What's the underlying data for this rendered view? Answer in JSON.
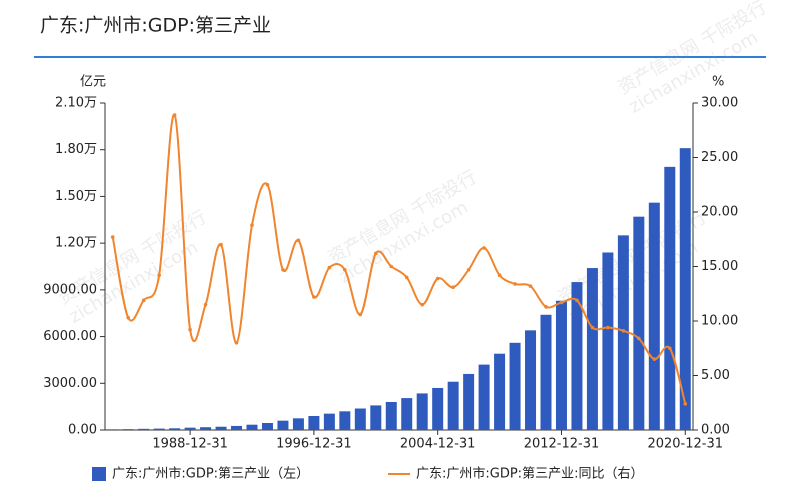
{
  "chart_data": {
    "type": "bar-line",
    "title": "广东:广州市:GDP:第三产业",
    "y_unit": "亿元",
    "y2_unit": "%",
    "watermark": [
      "资产信息网 千际投行",
      "zichanxinxi.com"
    ],
    "categories": [
      null,
      null,
      null,
      null,
      null,
      "1988-12-31",
      null,
      null,
      null,
      null,
      null,
      null,
      null,
      "1996-12-31",
      null,
      null,
      null,
      null,
      null,
      null,
      null,
      "2004-12-31",
      null,
      null,
      null,
      null,
      null,
      null,
      null,
      "2012-12-31",
      null,
      null,
      null,
      null,
      null,
      null,
      null,
      "2020-12-31"
    ],
    "series": [
      {
        "name": "广东:广州市:GDP:第三产业（左）",
        "type": "bar",
        "color": "#2f5bbf",
        "values": [
          45,
          55,
          75,
          90,
          110,
          150,
          180,
          210,
          260,
          340,
          450,
          600,
          750,
          900,
          1050,
          1200,
          1380,
          1580,
          1800,
          2050,
          2350,
          2700,
          3100,
          3600,
          4200,
          4900,
          5600,
          6400,
          7400,
          8300,
          9500,
          10400,
          11400,
          12500,
          13700,
          14600,
          16900,
          18100
        ]
      },
      {
        "name": "广东:广州市:GDP:第三产业:同比（右）",
        "type": "line",
        "axis": "y2",
        "color": "#f0852d",
        "values": [
          17.7,
          10.3,
          11.9,
          14.2,
          28.9,
          9.2,
          11.5,
          17.0,
          8.0,
          18.8,
          22.5,
          14.7,
          17.4,
          12.2,
          14.9,
          14.7,
          10.6,
          16.2,
          15.0,
          14.0,
          11.5,
          13.9,
          13.1,
          14.7,
          16.7,
          14.2,
          13.4,
          13.2,
          11.3,
          11.7,
          11.9,
          9.4,
          9.4,
          9.1,
          8.4,
          6.5,
          7.5,
          2.4
        ]
      }
    ],
    "ylim": [
      0,
      21000
    ],
    "yticks": [
      {
        "value": 0,
        "label": "0.00"
      },
      {
        "value": 3000,
        "label": "3000.00"
      },
      {
        "value": 6000,
        "label": "6000.00"
      },
      {
        "value": 9000,
        "label": "9000.00"
      },
      {
        "value": 12000,
        "label": "1.20万"
      },
      {
        "value": 15000,
        "label": "1.50万"
      },
      {
        "value": 18000,
        "label": "1.80万"
      },
      {
        "value": 21000,
        "label": "2.10万"
      }
    ],
    "y2lim": [
      0,
      30
    ],
    "y2ticks": [
      {
        "value": 0,
        "label": "0.00"
      },
      {
        "value": 5,
        "label": "5.00"
      },
      {
        "value": 10,
        "label": "10.00"
      },
      {
        "value": 15,
        "label": "15.00"
      },
      {
        "value": 20,
        "label": "20.00"
      },
      {
        "value": 25,
        "label": "25.00"
      },
      {
        "value": 30,
        "label": "30.00"
      }
    ],
    "legend": "bottom"
  }
}
